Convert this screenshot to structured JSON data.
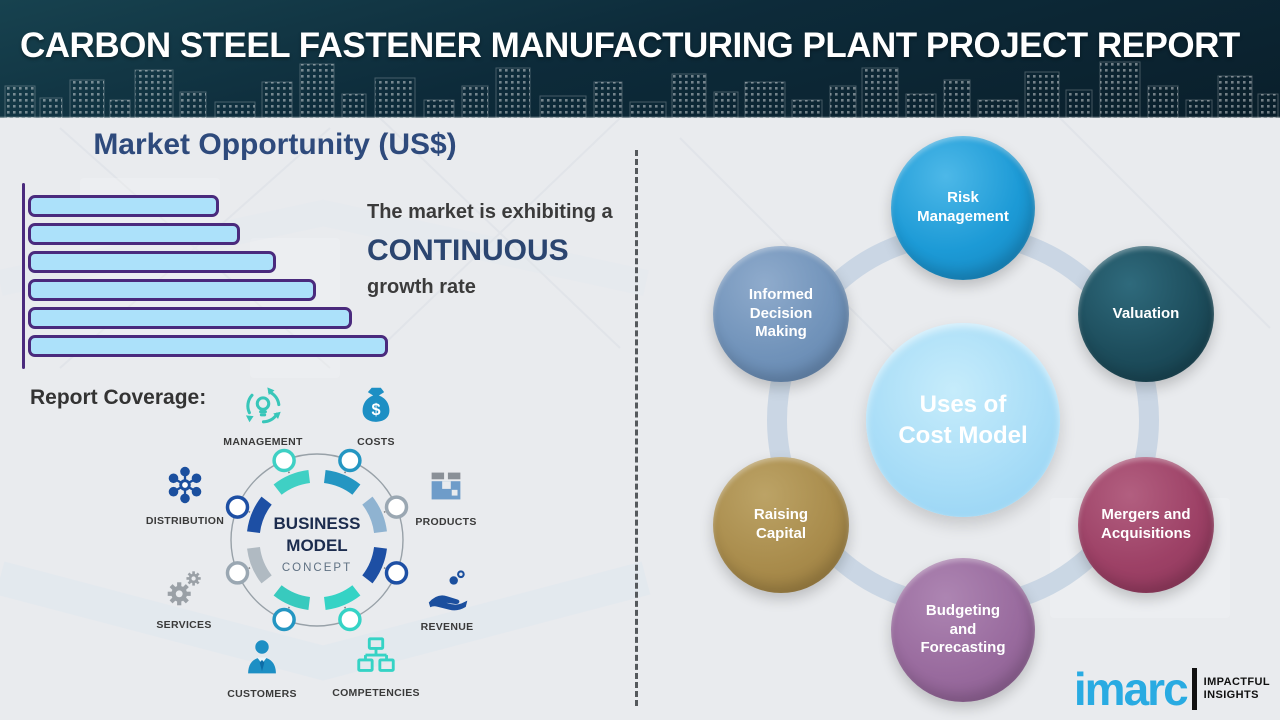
{
  "header": {
    "title": "CARBON STEEL FASTENER MANUFACTURING PLANT PROJECT REPORT"
  },
  "chart_data": {
    "type": "bar",
    "orientation": "horizontal",
    "title": "Market Opportunity (US$)",
    "categories": [
      "bar-1",
      "bar-2",
      "bar-3",
      "bar-4",
      "bar-5",
      "bar-6"
    ],
    "values": [
      53,
      59,
      69,
      80,
      90,
      100
    ],
    "value_unit": "percent of longest bar (axis unlabeled in image)",
    "xlabel": "",
    "ylabel": "",
    "grid": false,
    "bar_fill": "#ace1fa",
    "bar_border": "#4a2a7d",
    "annotation": "The market is exhibiting a CONTINUOUS growth rate"
  },
  "left": {
    "chart_title": "Market Opportunity (US$)",
    "growth": {
      "line1": "The market is exhibiting a",
      "highlight": "CONTINUOUS",
      "line2": "growth rate"
    },
    "report_coverage_label": "Report Coverage:",
    "business_model": {
      "center": {
        "line1": "BUSINESS",
        "line2": "MODEL",
        "line3": "CONCEPT"
      },
      "items": [
        {
          "label": "MANAGEMENT",
          "icon": "management-recycle-bulb-icon",
          "color": "#38c6b9"
        },
        {
          "label": "COSTS",
          "icon": "money-bag-icon",
          "color": "#1d8fc4"
        },
        {
          "label": "DISTRIBUTION",
          "icon": "network-hub-icon",
          "color": "#1b4f9e"
        },
        {
          "label": "PRODUCTS",
          "icon": "package-box-icon",
          "color": "#6e9cc9"
        },
        {
          "label": "SERVICES",
          "icon": "gears-icon",
          "color": "#9aa0a6"
        },
        {
          "label": "REVENUE",
          "icon": "hand-coins-icon",
          "color": "#1b4f9e"
        },
        {
          "label": "CUSTOMERS",
          "icon": "person-icon",
          "color": "#1d8fc4"
        },
        {
          "label": "COMPETENCIES",
          "icon": "org-chart-icon",
          "color": "#35d3c5"
        }
      ]
    }
  },
  "right": {
    "center_circle": {
      "line1": "Uses of",
      "line2": "Cost Model",
      "color": "#a6dcf7"
    },
    "satellites": [
      {
        "label": "Risk Management",
        "color": "#1c9ad6",
        "position": "top"
      },
      {
        "label": "Valuation",
        "color": "#1d4d5c",
        "position": "upper-right"
      },
      {
        "label": "Informed Decision Making",
        "color": "#7193ba",
        "position": "upper-left"
      },
      {
        "label": "Mergers and Acquisitions",
        "color": "#9d4166",
        "position": "lower-right"
      },
      {
        "label": "Raising Capital",
        "color": "#a98c4c",
        "position": "lower-left"
      },
      {
        "label": "Budgeting and Forecasting",
        "color": "#996b9e",
        "position": "bottom"
      }
    ]
  },
  "logo": {
    "brand": "imarc",
    "tagline_line1": "IMPACTFUL",
    "tagline_line2": "INSIGHTS"
  }
}
